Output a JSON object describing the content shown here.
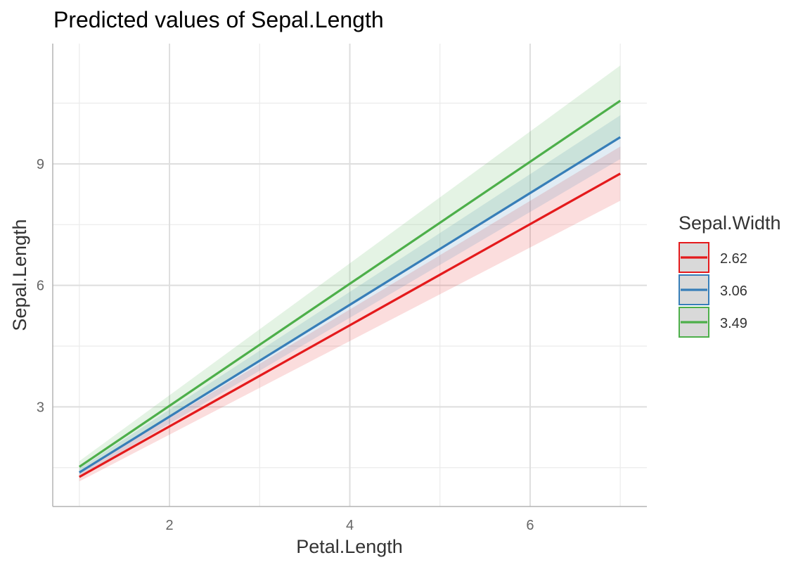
{
  "chart_data": {
    "type": "line",
    "title": "Predicted values of Sepal.Length",
    "xlabel": "Petal.Length",
    "ylabel": "Sepal.Length",
    "xlim": [
      0.705,
      7.295
    ],
    "ylim": [
      0.54,
      11.97
    ],
    "x_ticks": [
      2,
      4,
      6
    ],
    "x_tick_labels": [
      "2",
      "4",
      "6"
    ],
    "x_minor_ticks": [
      1,
      3,
      5,
      7
    ],
    "y_ticks": [
      3,
      6,
      9
    ],
    "y_tick_labels": [
      "3",
      "6",
      "9"
    ],
    "y_minor_ticks": [
      1.5,
      4.5,
      7.5,
      10.5
    ],
    "grid": true,
    "legend_title": "Sepal.Width",
    "legend_position": "right",
    "x": [
      1,
      7
    ],
    "series": [
      {
        "name": "2.62",
        "color": "#E41A1C",
        "values": [
          1.27,
          8.76
        ],
        "lower": [
          1.16,
          8.09
        ],
        "upper": [
          1.38,
          9.43
        ]
      },
      {
        "name": "3.06",
        "color": "#377EB8",
        "values": [
          1.38,
          9.66
        ],
        "lower": [
          1.28,
          9.12
        ],
        "upper": [
          1.48,
          10.2
        ]
      },
      {
        "name": "3.49",
        "color": "#4DAF4A",
        "values": [
          1.52,
          10.56
        ],
        "lower": [
          1.38,
          9.69
        ],
        "upper": [
          1.66,
          11.43
        ]
      }
    ]
  }
}
